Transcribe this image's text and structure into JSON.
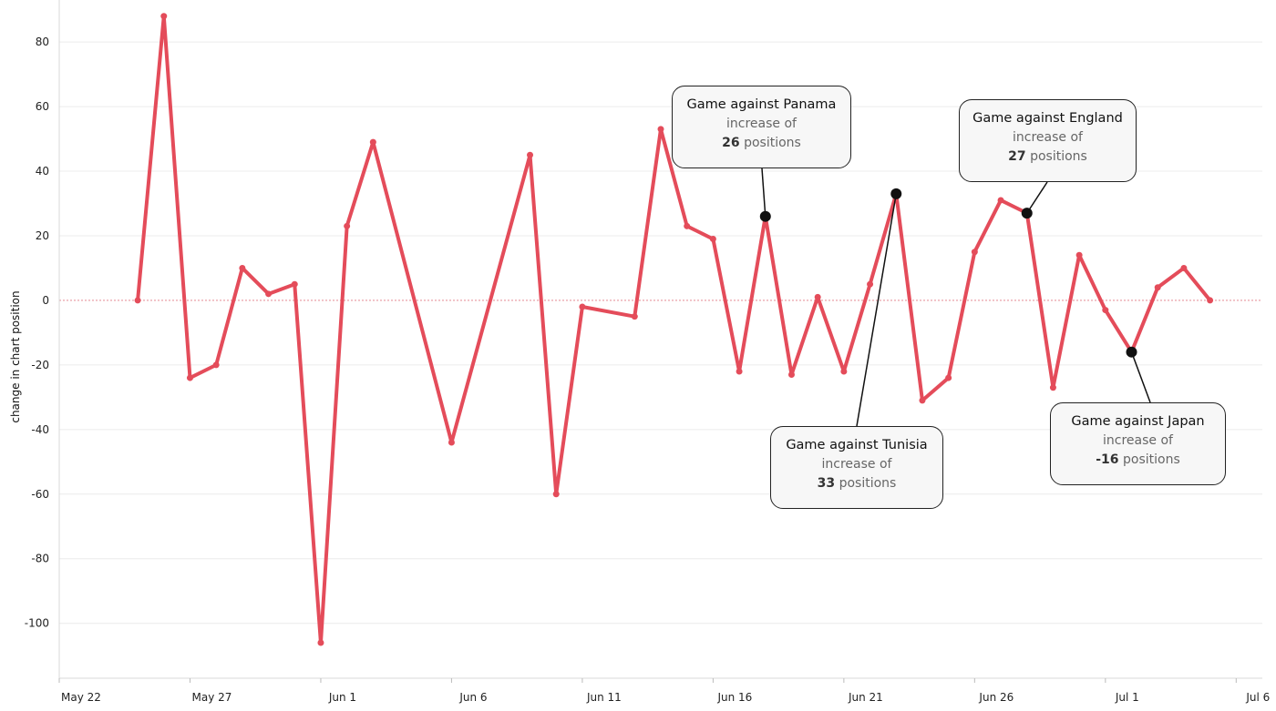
{
  "chart_data": {
    "type": "line",
    "ylabel": "change in chart position",
    "xlabel": "",
    "ylim": [
      -117,
      93
    ],
    "xlim": [
      "2018-05-22",
      "2018-07-07"
    ],
    "x_ticks": [
      "May 22",
      "May 27",
      "Jun 1",
      "Jun 6",
      "Jun 11",
      "Jun 16",
      "Jun 21",
      "Jun 26",
      "Jul 1",
      "Jul 6"
    ],
    "y_ticks": [
      80,
      60,
      40,
      20,
      0,
      -20,
      -40,
      -60,
      -80,
      -100
    ],
    "reference_line": 0,
    "line_color": "#e44c5a",
    "points": [
      {
        "x": "2018-05-25",
        "y": 0
      },
      {
        "x": "2018-05-26",
        "y": 88
      },
      {
        "x": "2018-05-27",
        "y": -24
      },
      {
        "x": "2018-05-28",
        "y": -20
      },
      {
        "x": "2018-05-29",
        "y": 10
      },
      {
        "x": "2018-05-30",
        "y": 2
      },
      {
        "x": "2018-05-31",
        "y": 5
      },
      {
        "x": "2018-06-01",
        "y": -106
      },
      {
        "x": "2018-06-02",
        "y": 23
      },
      {
        "x": "2018-06-03",
        "y": 49
      },
      {
        "x": "2018-06-06",
        "y": -44
      },
      {
        "x": "2018-06-09",
        "y": 45
      },
      {
        "x": "2018-06-10",
        "y": -60
      },
      {
        "x": "2018-06-11",
        "y": -2
      },
      {
        "x": "2018-06-13",
        "y": -5
      },
      {
        "x": "2018-06-14",
        "y": 53
      },
      {
        "x": "2018-06-15",
        "y": 23
      },
      {
        "x": "2018-06-16",
        "y": 19
      },
      {
        "x": "2018-06-17",
        "y": -22
      },
      {
        "x": "2018-06-18",
        "y": 26
      },
      {
        "x": "2018-06-19",
        "y": -23
      },
      {
        "x": "2018-06-20",
        "y": 1
      },
      {
        "x": "2018-06-21",
        "y": -22
      },
      {
        "x": "2018-06-22",
        "y": 5
      },
      {
        "x": "2018-06-23",
        "y": 33
      },
      {
        "x": "2018-06-24",
        "y": -31
      },
      {
        "x": "2018-06-25",
        "y": -24
      },
      {
        "x": "2018-06-26",
        "y": 15
      },
      {
        "x": "2018-06-27",
        "y": 31
      },
      {
        "x": "2018-06-28",
        "y": 27
      },
      {
        "x": "2018-06-29",
        "y": -27
      },
      {
        "x": "2018-06-30",
        "y": 14
      },
      {
        "x": "2018-07-01",
        "y": -3
      },
      {
        "x": "2018-07-02",
        "y": -16
      },
      {
        "x": "2018-07-03",
        "y": 4
      },
      {
        "x": "2018-07-04",
        "y": 10
      },
      {
        "x": "2018-07-05",
        "y": 0
      }
    ],
    "annotations": [
      {
        "x": "2018-06-18",
        "y": 26,
        "title": "Game against Panama",
        "line1": "increase of",
        "value": "26",
        "unit": "positions"
      },
      {
        "x": "2018-06-23",
        "y": 33,
        "title": "Game against Tunisia",
        "line1": "increase of",
        "value": "33",
        "unit": "positions"
      },
      {
        "x": "2018-06-28",
        "y": 27,
        "title": "Game against England",
        "line1": "increase of",
        "value": "27",
        "unit": "positions"
      },
      {
        "x": "2018-07-02",
        "y": -16,
        "title": "Game against Japan",
        "line1": "increase of",
        "value": "-16",
        "unit": "positions"
      }
    ]
  }
}
